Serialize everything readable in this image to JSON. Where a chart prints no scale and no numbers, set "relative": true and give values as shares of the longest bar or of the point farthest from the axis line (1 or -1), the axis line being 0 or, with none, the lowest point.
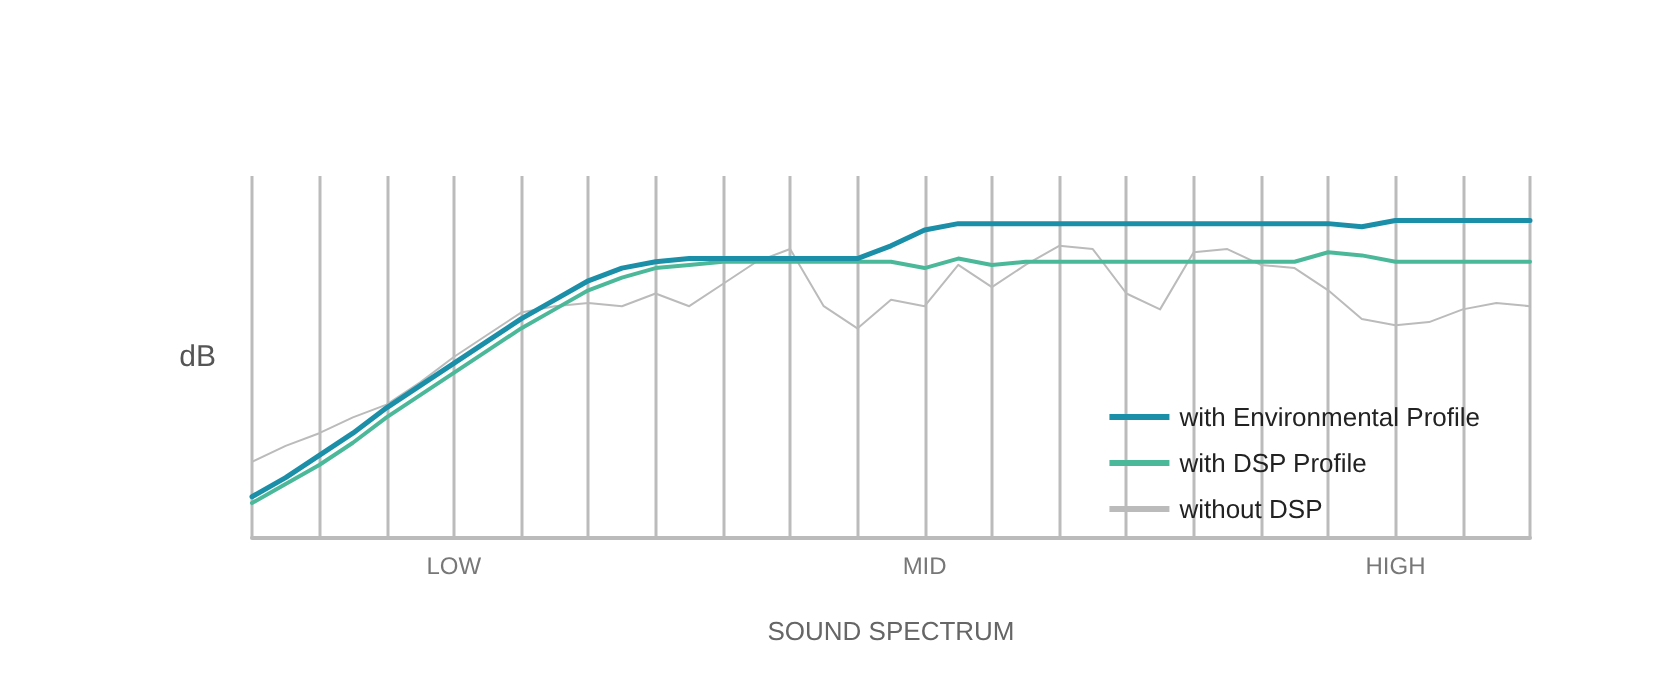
{
  "chart_data": {
    "type": "line",
    "relative": true,
    "xlabel": "SOUND SPECTRUM",
    "ylabel": "dB",
    "categories": [
      null,
      null,
      null,
      null,
      null,
      null,
      "LOW",
      null,
      null,
      null,
      null,
      null,
      null,
      null,
      null,
      null,
      null,
      null,
      null,
      null,
      "MID",
      null,
      null,
      null,
      null,
      null,
      null,
      null,
      null,
      null,
      null,
      null,
      null,
      null,
      "HIGH",
      null,
      null,
      null,
      null
    ],
    "grid": "x",
    "legend": "bottom right",
    "marker": "none",
    "line_style": "solid",
    "series": [
      {
        "name": "with Environmental Profile",
        "color": "#1b8ea8",
        "values": [
          0.13,
          0.19,
          0.26,
          0.33,
          0.41,
          0.48,
          0.55,
          0.62,
          0.69,
          0.75,
          0.81,
          0.85,
          0.87,
          0.88,
          0.88,
          0.88,
          0.88,
          0.88,
          0.88,
          0.92,
          0.97,
          0.99,
          0.99,
          0.99,
          0.99,
          0.99,
          0.99,
          0.99,
          0.99,
          0.99,
          0.99,
          0.99,
          0.99,
          0.98,
          1.0,
          1.0,
          1.0,
          1.0,
          1.0
        ]
      },
      {
        "name": "with DSP Profile",
        "color": "#4cb89a",
        "values": [
          0.11,
          0.17,
          0.23,
          0.3,
          0.38,
          0.45,
          0.52,
          0.59,
          0.66,
          0.72,
          0.78,
          0.82,
          0.85,
          0.86,
          0.87,
          0.87,
          0.87,
          0.87,
          0.87,
          0.87,
          0.85,
          0.88,
          0.86,
          0.87,
          0.87,
          0.87,
          0.87,
          0.87,
          0.87,
          0.87,
          0.87,
          0.87,
          0.9,
          0.89,
          0.87,
          0.87,
          0.87,
          0.87,
          0.87
        ]
      },
      {
        "name": "without DSP",
        "color": "#bbbbbb",
        "values": [
          0.24,
          0.29,
          0.33,
          0.38,
          0.42,
          0.49,
          0.57,
          0.64,
          0.71,
          0.73,
          0.74,
          0.73,
          0.77,
          0.73,
          0.8,
          0.87,
          0.91,
          0.73,
          0.66,
          0.75,
          0.73,
          0.86,
          0.79,
          0.86,
          0.92,
          0.91,
          0.77,
          0.72,
          0.9,
          0.91,
          0.86,
          0.85,
          0.78,
          0.69,
          0.67,
          0.68,
          0.72,
          0.74,
          0.73
        ]
      }
    ]
  }
}
